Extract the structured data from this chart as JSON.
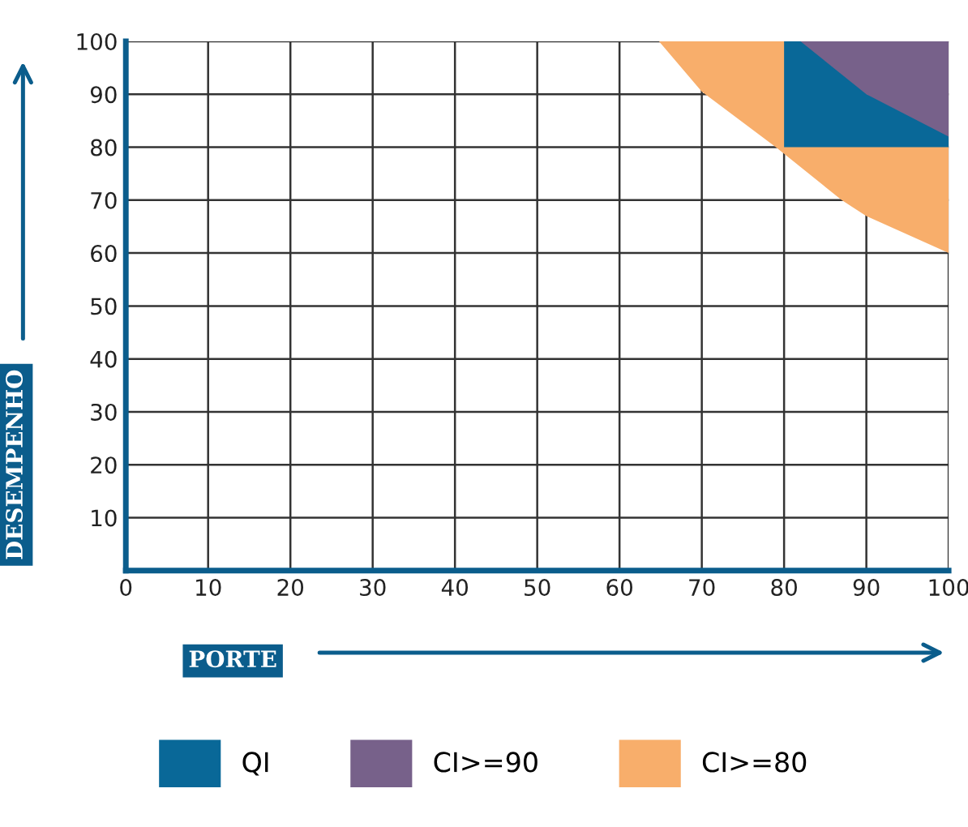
{
  "chart_data": {
    "type": "area",
    "xlabel": "PORTE",
    "ylabel": "DESEMPENHO",
    "xlim": [
      0,
      100
    ],
    "ylim": [
      0,
      100
    ],
    "xticks": [
      0,
      10,
      20,
      30,
      40,
      50,
      60,
      70,
      80,
      90,
      100
    ],
    "yticks": [
      10,
      20,
      30,
      40,
      50,
      60,
      70,
      80,
      90,
      100
    ],
    "grid": true,
    "legend": "bottom",
    "series": [
      {
        "name": "CI>=80",
        "color": "#f8ae6b",
        "x": [
          64.8,
          70,
          79,
          87,
          90,
          100,
          100
        ],
        "values": [
          100,
          90.5,
          80,
          70,
          67,
          60,
          100
        ]
      },
      {
        "name": "QI",
        "color": "#096898",
        "x": [
          80,
          100,
          100,
          80
        ],
        "values": [
          80,
          80,
          100,
          100
        ]
      },
      {
        "name": "CI>=90",
        "color": "#77618a",
        "x": [
          82,
          90,
          100,
          100
        ],
        "values": [
          100,
          90,
          82,
          100
        ]
      }
    ]
  }
}
